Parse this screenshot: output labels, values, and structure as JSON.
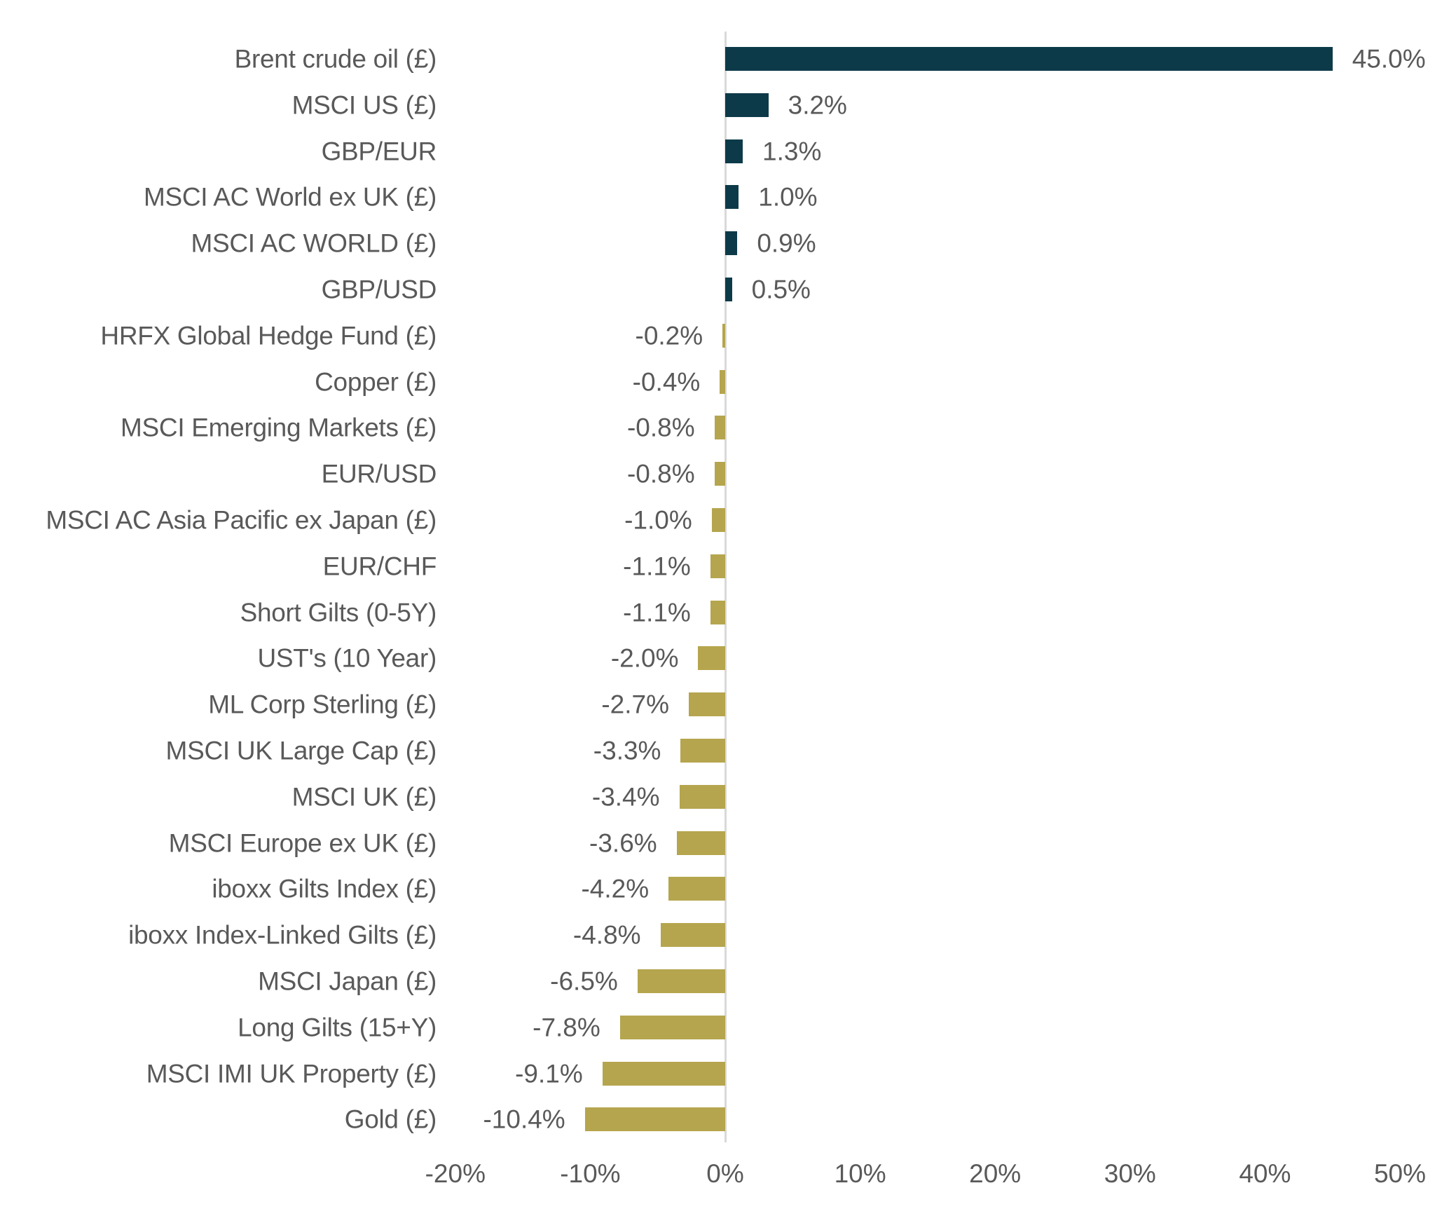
{
  "chart_data": {
    "type": "bar",
    "orientation": "horizontal",
    "title": "",
    "xlabel": "",
    "ylabel": "",
    "categories": [
      "Brent crude oil (£)",
      "MSCI US (£)",
      "GBP/EUR",
      "MSCI AC World ex UK (£)",
      "MSCI AC WORLD (£)",
      "GBP/USD",
      "HRFX Global Hedge Fund (£)",
      "Copper (£)",
      "MSCI Emerging Markets (£)",
      "EUR/USD",
      "MSCI AC Asia Pacific ex Japan (£)",
      "EUR/CHF",
      "Short Gilts (0-5Y)",
      "UST's (10 Year)",
      "ML Corp Sterling (£)",
      "MSCI UK Large Cap (£)",
      "MSCI UK (£)",
      "MSCI Europe ex UK (£)",
      "iboxx Gilts Index (£)",
      "iboxx Index-Linked Gilts (£)",
      "MSCI Japan (£)",
      "Long Gilts (15+Y)",
      "MSCI IMI UK Property (£)",
      "Gold (£)"
    ],
    "values": [
      45.0,
      3.2,
      1.3,
      1.0,
      0.9,
      0.5,
      -0.2,
      -0.4,
      -0.8,
      -0.8,
      -1.0,
      -1.1,
      -1.1,
      -2.0,
      -2.7,
      -3.3,
      -3.4,
      -3.6,
      -4.2,
      -4.8,
      -6.5,
      -7.8,
      -9.1,
      -10.4
    ],
    "value_labels": [
      "45.0%",
      "3.2%",
      "1.3%",
      "1.0%",
      "0.9%",
      "0.5%",
      "-0.2%",
      "-0.4%",
      "-0.8%",
      "-0.8%",
      "-1.0%",
      "-1.1%",
      "-1.1%",
      "-2.0%",
      "-2.7%",
      "-3.3%",
      "-3.4%",
      "-3.6%",
      "-4.2%",
      "-4.8%",
      "-6.5%",
      "-7.8%",
      "-9.1%",
      "-10.4%"
    ],
    "x_ticks": [
      {
        "value": -20,
        "label": "-20%"
      },
      {
        "value": -10,
        "label": "-10%"
      },
      {
        "value": 0,
        "label": "0%"
      },
      {
        "value": 10,
        "label": "10%"
      },
      {
        "value": 20,
        "label": "20%"
      },
      {
        "value": 30,
        "label": "30%"
      },
      {
        "value": 40,
        "label": "40%"
      },
      {
        "value": 50,
        "label": "50%"
      }
    ],
    "xlim": [
      -20,
      50
    ],
    "grid": false,
    "legend": "none",
    "colors": {
      "positive_bar": "#0d3a49",
      "negative_bar": "#b5a54e",
      "text": "#595959",
      "zero_axis_line": "#d9d9d9"
    }
  }
}
